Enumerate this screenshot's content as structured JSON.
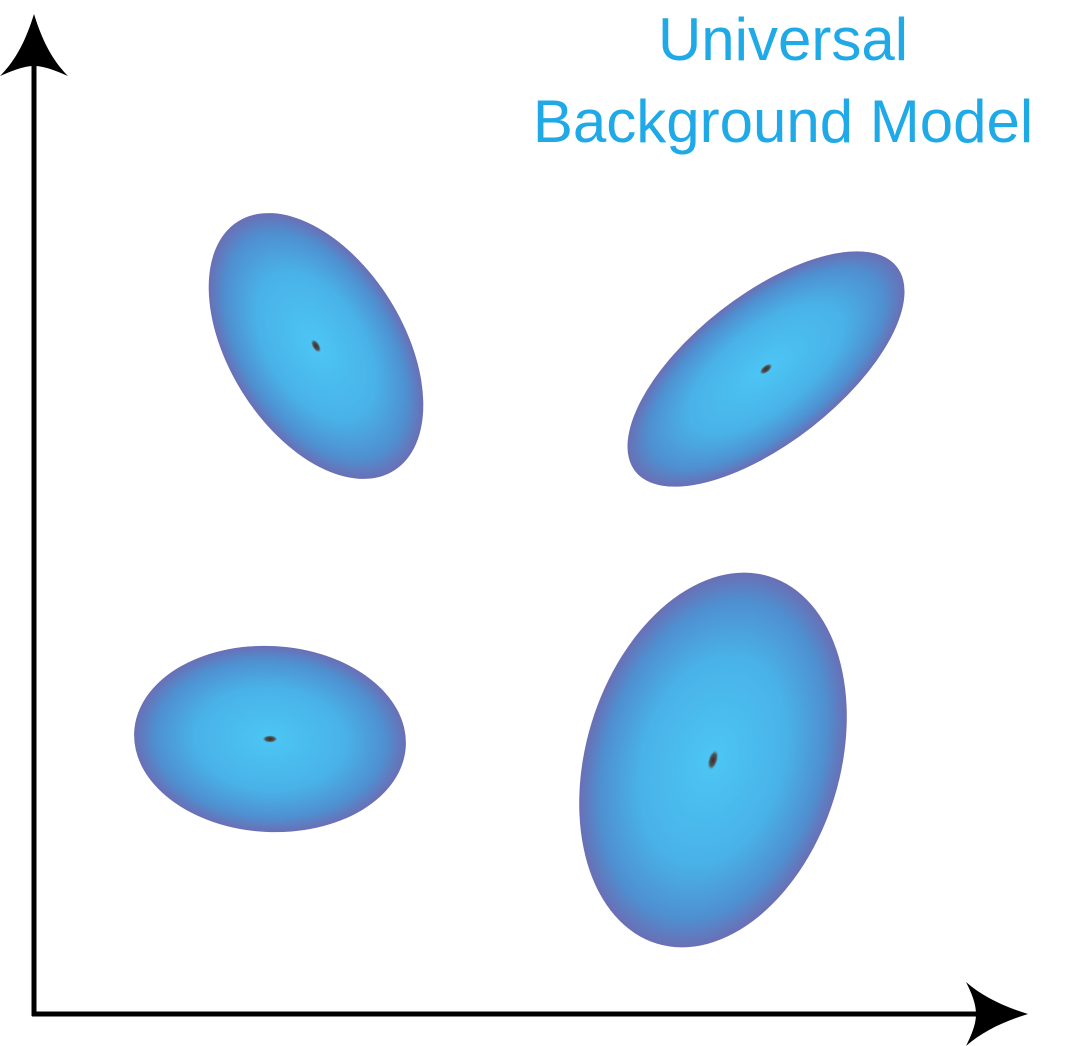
{
  "title": {
    "line1": "Universal",
    "line2": "Background Model"
  },
  "colors": {
    "title": "#1fa9e6",
    "axis": "#000000",
    "blob_center": "#4cc6f5",
    "blob_mid": "#4a9fd8",
    "blob_edge": "#6a6fb5",
    "mean_dot": "#3a3a3a"
  },
  "icons": {
    "y_axis_arrow": "arrow-up-icon",
    "x_axis_arrow": "arrow-right-icon"
  },
  "components_count": 4
}
